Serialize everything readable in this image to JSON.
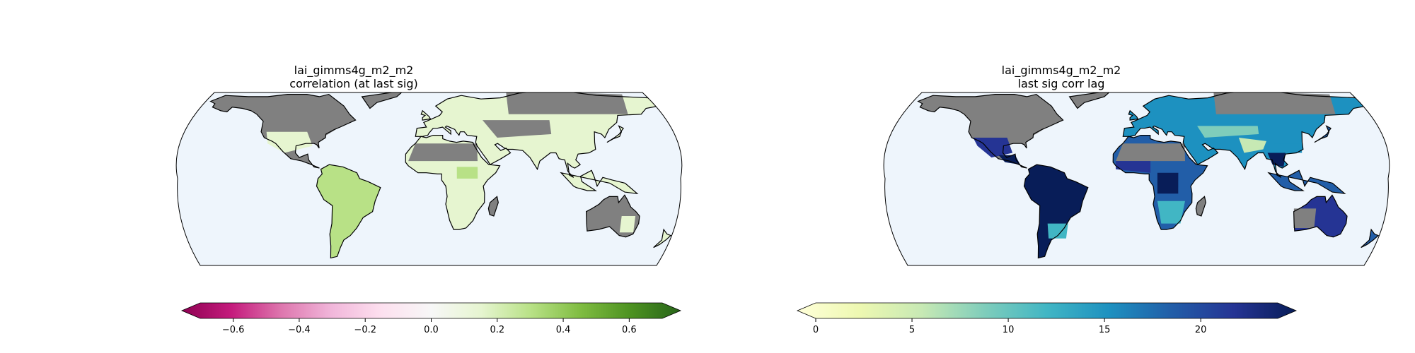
{
  "chart_data": [
    {
      "type": "map",
      "title": "lai_gimms4g_m2_m2",
      "subtitle": "correlation (at last sig)",
      "projection": "Eckert-like pseudocylindrical, latitude range clipped",
      "colorbar": {
        "cmap": "PiYG",
        "colors": [
          "#8e0152",
          "#c51b7d",
          "#de77ae",
          "#f1b6da",
          "#fde0ef",
          "#f7f7f7",
          "#e6f5d0",
          "#b8e186",
          "#7fbc41",
          "#4d9221",
          "#276419"
        ],
        "range": [
          -0.7,
          0.7
        ],
        "ticks": [
          "−0.6",
          "−0.4",
          "−0.2",
          "0.0",
          "0.2",
          "0.4",
          "0.6"
        ],
        "tick_values": [
          -0.6,
          -0.4,
          -0.2,
          0.0,
          0.2,
          0.4,
          0.6
        ],
        "extend": "both"
      },
      "ocean_color": "#eef5fc",
      "masked_color": "#808080"
    },
    {
      "type": "map",
      "title": "lai_gimms4g_m2_m2",
      "subtitle": "last sig corr lag",
      "projection": "Eckert-like pseudocylindrical, latitude range clipped",
      "colorbar": {
        "cmap": "YlGnBu",
        "colors": [
          "#ffffd9",
          "#edf8b1",
          "#c7e9b4",
          "#7fcdbb",
          "#41b6c4",
          "#1d91c0",
          "#225ea8",
          "#253494",
          "#081d58"
        ],
        "range": [
          0,
          24
        ],
        "ticks": [
          "0",
          "5",
          "10",
          "15",
          "20"
        ],
        "tick_values": [
          0,
          5,
          10,
          15,
          20
        ],
        "extend": "both"
      },
      "ocean_color": "#eef5fc",
      "masked_color": "#808080"
    }
  ]
}
